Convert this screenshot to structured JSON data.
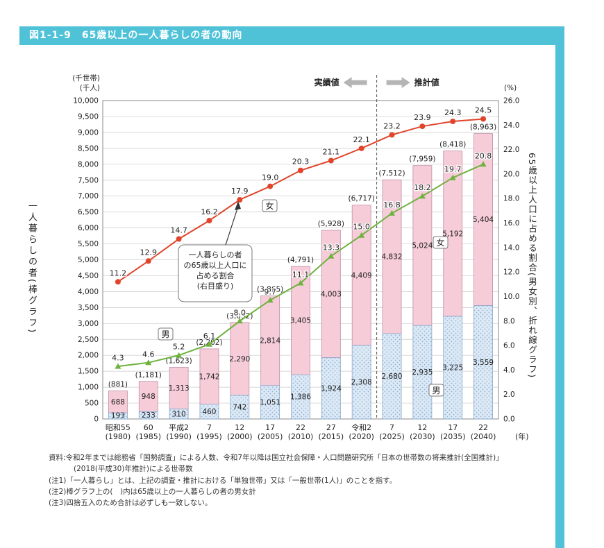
{
  "title": {
    "text": "図1-1-9　65歳以上の一人暮らしの者の動向"
  },
  "colors": {
    "accent": "#4fc2d8",
    "bar_women": "#f6ccd9",
    "bar_women_border": "#c08ea6",
    "bar_men": "#dde9f5",
    "bar_men_dot": "#8fb4d8",
    "bar_men_border": "#86a8cb",
    "line_women": "#e0452c",
    "line_men": "#6fb23e"
  },
  "chart_data": {
    "type": "bar+line",
    "x_unit": "(年)",
    "categories": [
      {
        "era": "昭和55",
        "year": "(1980)"
      },
      {
        "era": "60",
        "year": "(1985)"
      },
      {
        "era": "平成2",
        "year": "(1990)"
      },
      {
        "era": "7",
        "year": "(1995)"
      },
      {
        "era": "12",
        "year": "(2000)"
      },
      {
        "era": "17",
        "year": "(2005)"
      },
      {
        "era": "22",
        "year": "(2010)"
      },
      {
        "era": "27",
        "year": "(2015)"
      },
      {
        "era": "令和2",
        "year": "(2020)"
      },
      {
        "era": "7",
        "year": "(2025)"
      },
      {
        "era": "12",
        "year": "(2030)"
      },
      {
        "era": "17",
        "year": "(2035)"
      },
      {
        "era": "22",
        "year": "(2040)"
      }
    ],
    "left_axis": {
      "units": [
        "(千世帯)",
        "(千人)"
      ],
      "min": 0,
      "max": 10000,
      "step": 500,
      "title": "一人暮らしの者(棒グラフ)"
    },
    "right_axis": {
      "unit": "(%)",
      "min": 0,
      "max": 26,
      "step": 2,
      "title": "65歳以上人口に占める割合(男女別、折れ線グラフ)"
    },
    "bars": {
      "men": {
        "label": "男",
        "values": [
          193,
          233,
          310,
          460,
          742,
          1051,
          1386,
          1924,
          2308,
          2680,
          2935,
          3225,
          3559
        ]
      },
      "women": {
        "label": "女",
        "values": [
          688,
          948,
          1313,
          1742,
          2290,
          2814,
          3405,
          4003,
          4409,
          4832,
          5024,
          5192,
          5404
        ]
      },
      "totals": [
        881,
        1181,
        1623,
        2202,
        3032,
        3865,
        4791,
        5928,
        6717,
        7512,
        7959,
        8418,
        8963
      ]
    },
    "lines": {
      "women": {
        "label": "女",
        "color": "#e0452c",
        "values": [
          11.2,
          12.9,
          14.7,
          16.2,
          17.9,
          19.0,
          20.3,
          21.1,
          22.1,
          23.2,
          23.9,
          24.3,
          24.5
        ]
      },
      "men": {
        "label": "男",
        "color": "#6fb23e",
        "values": [
          4.3,
          4.6,
          5.2,
          6.1,
          8.0,
          9.7,
          11.1,
          13.3,
          15.0,
          16.8,
          18.2,
          19.7,
          20.8
        ]
      }
    },
    "annotations": {
      "actual": "実績値",
      "projected": "推計値",
      "callout_lines": [
        "一人暮らしの者",
        "の65歳以上人口に",
        "占める割合",
        "(右目盛り)"
      ]
    }
  },
  "notes": {
    "source": "資料:令和2年までは総務省「国勢調査」による人数、令和7年以降は国立社会保障・人口問題研究所「日本の世帯数の将来推計(全国推計)」",
    "source2": "(2018(平成30)年推計)による世帯数",
    "note1": "(注1)「一人暮らし」とは、上記の調査・推計における「単独世帯」又は「一般世帯(1人)」のことを指す。",
    "note2": "(注2)棒グラフ上の(　)内は65歳以上の一人暮らしの者の男女計",
    "note3": "(注3)四捨五入のため合計は必ずしも一致しない。"
  }
}
